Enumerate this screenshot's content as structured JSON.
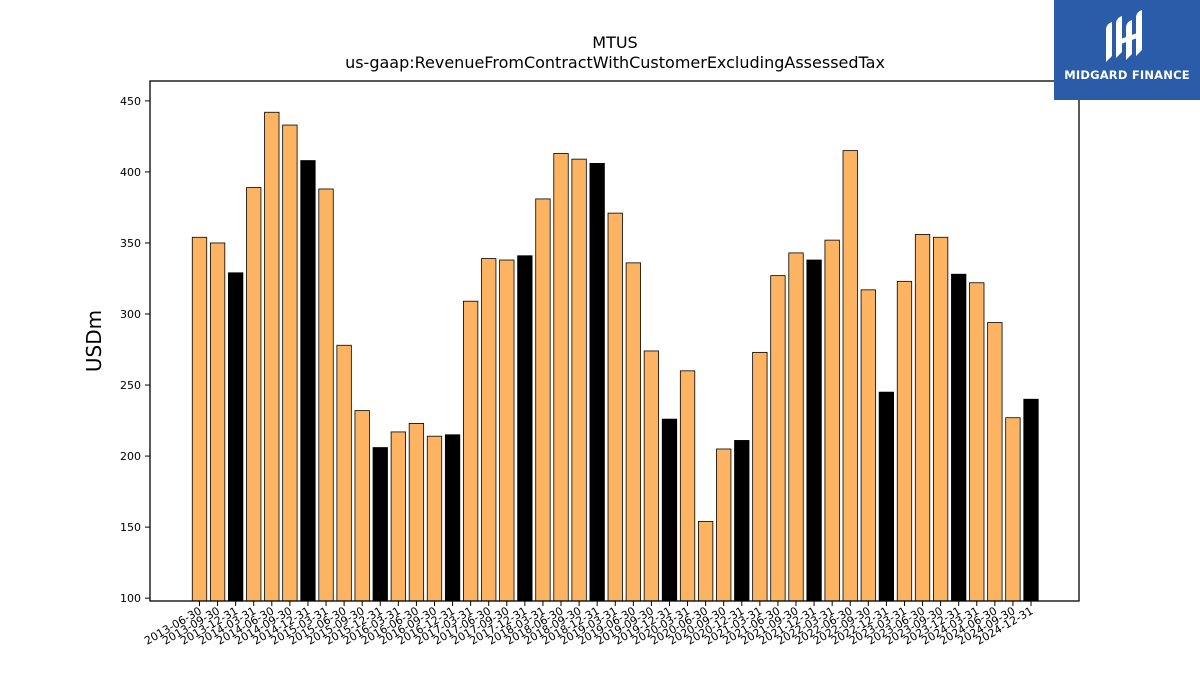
{
  "chart_data": {
    "type": "bar",
    "title": "MTUS",
    "subtitle": "us-gaap:RevenueFromContractWithCustomerExcludingAssessedTax",
    "xlabel": "",
    "ylabel": "USDm",
    "ylim": [
      98,
      464
    ],
    "yticks": [
      100,
      150,
      200,
      250,
      300,
      350,
      400,
      450
    ],
    "grid": false,
    "categories": [
      "2013-06-30",
      "2013-09-30",
      "2013-12-31",
      "2014-03-31",
      "2014-06-30",
      "2014-09-30",
      "2014-12-31",
      "2015-03-31",
      "2015-06-30",
      "2015-09-30",
      "2015-12-31",
      "2016-03-31",
      "2016-06-30",
      "2016-09-30",
      "2016-12-31",
      "2017-03-31",
      "2017-06-30",
      "2017-09-30",
      "2017-12-31",
      "2018-03-31",
      "2018-06-30",
      "2018-09-30",
      "2018-12-31",
      "2019-03-31",
      "2019-06-30",
      "2019-09-30",
      "2019-12-31",
      "2020-03-31",
      "2020-06-30",
      "2020-09-30",
      "2020-12-31",
      "2021-03-31",
      "2021-06-30",
      "2021-09-30",
      "2021-12-31",
      "2022-03-31",
      "2022-06-30",
      "2022-09-30",
      "2022-12-31",
      "2023-03-31",
      "2023-06-30",
      "2023-09-30",
      "2023-12-31",
      "2024-03-31",
      "2024-06-30",
      "2024-09-30",
      "2024-12-31"
    ],
    "values": [
      354,
      350,
      329,
      389,
      442,
      433,
      408,
      388,
      278,
      232,
      206,
      217,
      223,
      214,
      215,
      309,
      339,
      338,
      341,
      381,
      413,
      409,
      406,
      371,
      336,
      274,
      226,
      260,
      154,
      205,
      211,
      273,
      327,
      343,
      338,
      352,
      415,
      317,
      245,
      323,
      356,
      354,
      328,
      322,
      294,
      227,
      240
    ],
    "bar_color_default": "#fdb462",
    "bar_color_year_end": "#000000",
    "bar_edge_color": "#000000"
  },
  "logo": {
    "text": "MIDGARD FINANCE",
    "background": "#2a5caa"
  }
}
